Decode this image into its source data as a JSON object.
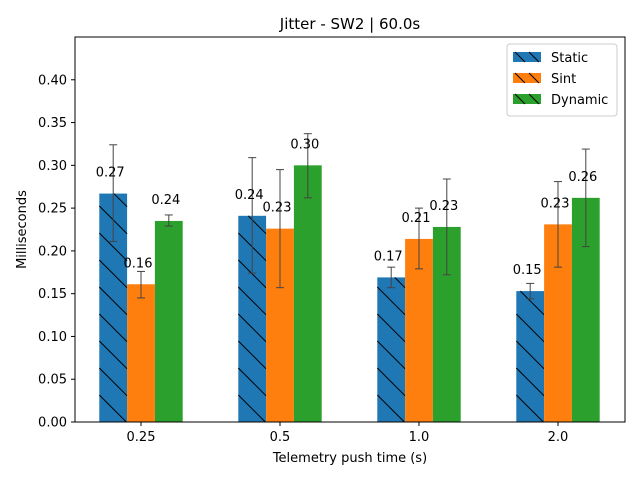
{
  "chart_data": {
    "type": "bar",
    "title": "Jitter - SW2 | 60.0s",
    "xlabel": "Telemetry push time (s)",
    "ylabel": "Milliseconds",
    "categories": [
      "0.25",
      "0.5",
      "1.0",
      "2.0"
    ],
    "ylim": [
      0,
      0.45
    ],
    "yticks": [
      "0.00",
      "0.05",
      "0.10",
      "0.15",
      "0.20",
      "0.25",
      "0.30",
      "0.35",
      "0.40"
    ],
    "grid": false,
    "legend_position": "top-right",
    "series": [
      {
        "name": "Static",
        "color": "#1f77b4",
        "values": [
          0.267,
          0.241,
          0.169,
          0.153
        ],
        "labels": [
          "0.27",
          "0.24",
          "0.17",
          "0.15"
        ],
        "err_low": [
          0.211,
          0.174,
          0.157,
          0.144
        ],
        "err_high": [
          0.324,
          0.309,
          0.181,
          0.162
        ],
        "hatch": true
      },
      {
        "name": "Sint",
        "color": "#ff7f0e",
        "values": [
          0.161,
          0.226,
          0.214,
          0.231
        ],
        "labels": [
          "0.16",
          "0.23",
          "0.21",
          "0.23"
        ],
        "err_low": [
          0.145,
          0.157,
          0.179,
          0.181
        ],
        "err_high": [
          0.176,
          0.295,
          0.25,
          0.281
        ],
        "hatch": false
      },
      {
        "name": "Dynamic",
        "color": "#2ca02c",
        "values": [
          0.235,
          0.3,
          0.228,
          0.262
        ],
        "labels": [
          "0.24",
          "0.30",
          "0.23",
          "0.26"
        ],
        "err_low": [
          0.229,
          0.262,
          0.172,
          0.205
        ],
        "err_high": [
          0.242,
          0.337,
          0.284,
          0.319
        ],
        "hatch": false
      }
    ]
  }
}
